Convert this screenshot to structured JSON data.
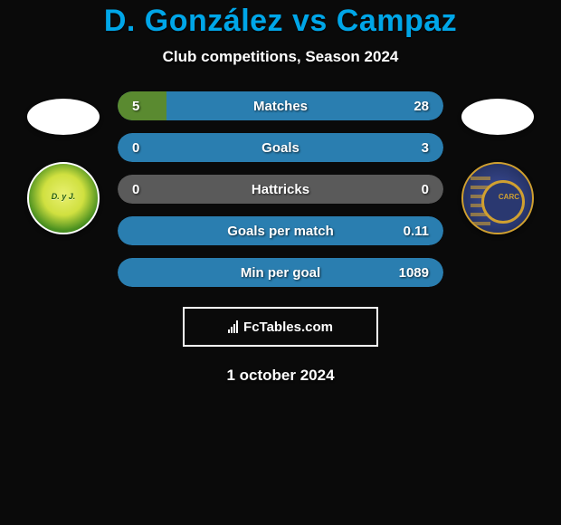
{
  "title": "D. González vs Campaz",
  "subtitle": "Club competitions, Season 2024",
  "date": "1 october 2024",
  "footer_brand": "FcTables.com",
  "player_left": {
    "badge_text": "D. y J."
  },
  "player_right": {
    "badge_text": "CARC"
  },
  "colors": {
    "title": "#00a6e8",
    "background": "#0a0a0a",
    "bar_blue": "#2a7eb0",
    "bar_green": "#5a8a30",
    "bar_dark": "#5a5a5a",
    "text": "#ffffff"
  },
  "stats": [
    {
      "label": "Matches",
      "left_value": "5",
      "right_value": "28",
      "left_pct": 15,
      "right_pct": 85,
      "left_color": "#5a8a30",
      "right_color": "#2a7eb0"
    },
    {
      "label": "Goals",
      "left_value": "0",
      "right_value": "3",
      "left_pct": 0,
      "right_pct": 100,
      "left_color": "#5a8a30",
      "right_color": "#2a7eb0"
    },
    {
      "label": "Hattricks",
      "left_value": "0",
      "right_value": "0",
      "left_pct": 0,
      "right_pct": 0,
      "left_color": "#5a5a5a",
      "right_color": "#5a5a5a"
    },
    {
      "label": "Goals per match",
      "left_value": "",
      "right_value": "0.11",
      "left_pct": 0,
      "right_pct": 100,
      "left_color": "#5a8a30",
      "right_color": "#2a7eb0"
    },
    {
      "label": "Min per goal",
      "left_value": "",
      "right_value": "1089",
      "left_pct": 0,
      "right_pct": 100,
      "left_color": "#5a8a30",
      "right_color": "#2a7eb0"
    }
  ]
}
